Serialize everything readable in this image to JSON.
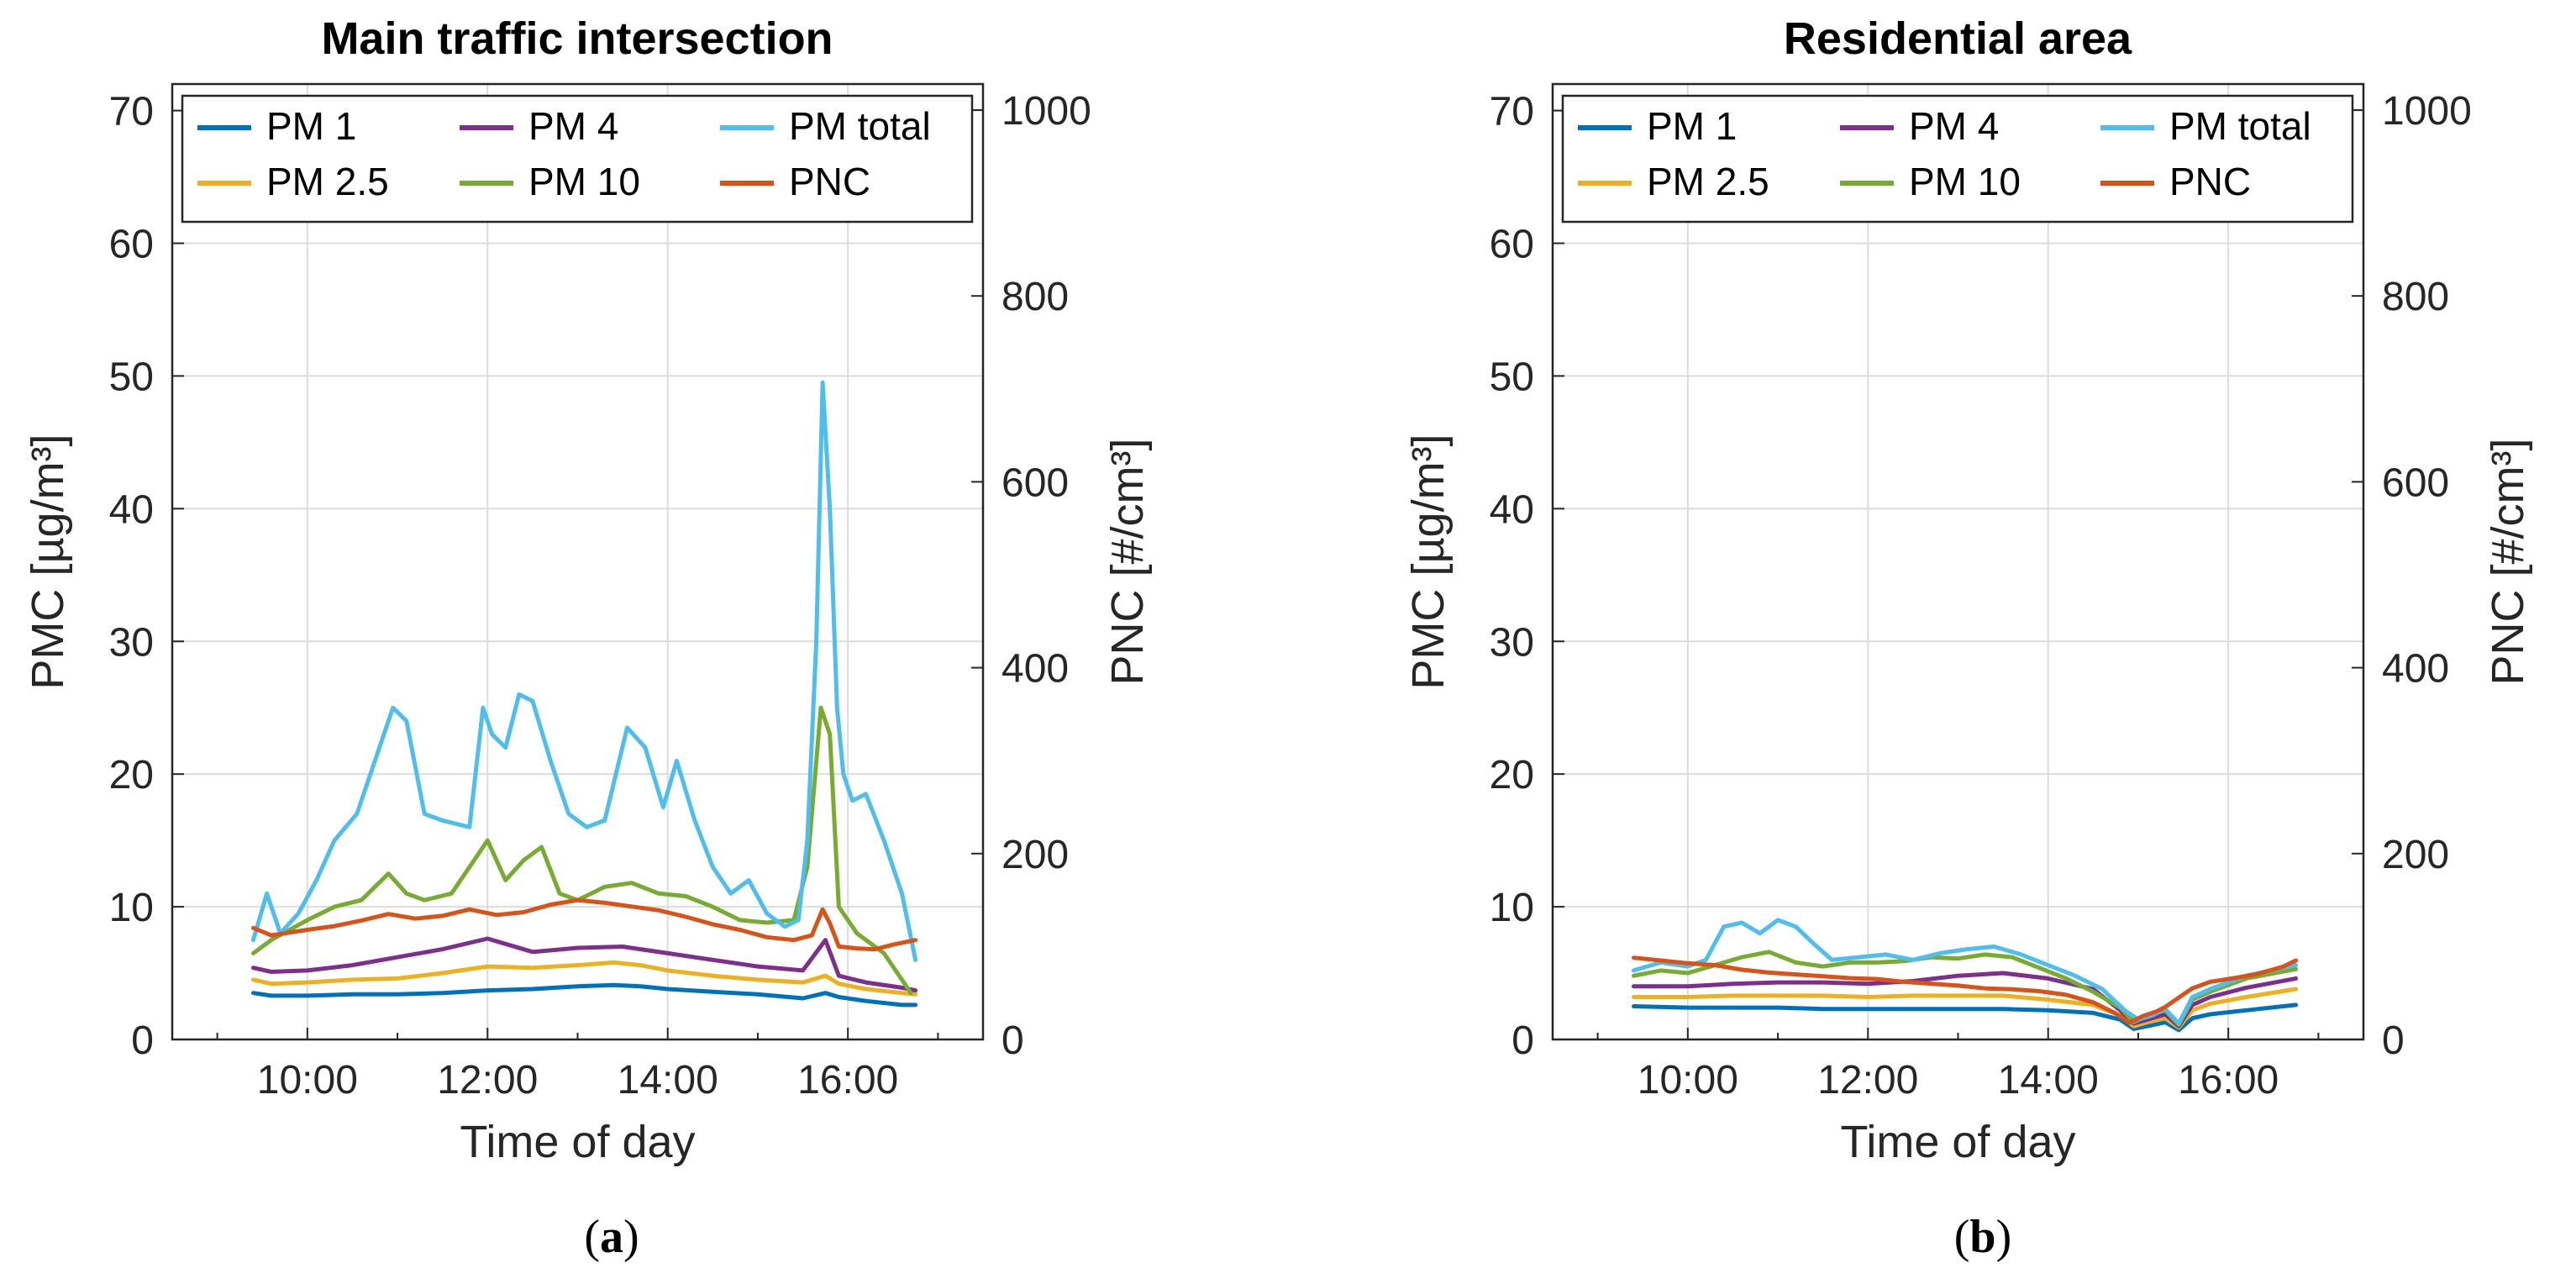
{
  "figure": {
    "captions": [
      {
        "open": "(",
        "letter": "a",
        "close": ")"
      },
      {
        "open": "(",
        "letter": "b",
        "close": ")"
      }
    ]
  },
  "chart_data": [
    {
      "type": "line",
      "title": "Main traffic intersection",
      "xlabel": "Time of day",
      "ylabel_left": "PMC [µg/m³]",
      "ylabel_right": "PNC [#/cm³]",
      "xlim": [
        8.5,
        17.5
      ],
      "ylim_left": [
        0,
        72
      ],
      "ylim_right": [
        0,
        1028
      ],
      "x_ticks": [
        10,
        12,
        14,
        16
      ],
      "x_tick_labels": [
        "10:00",
        "12:00",
        "14:00",
        "16:00"
      ],
      "y_ticks_left": [
        0,
        10,
        20,
        30,
        40,
        50,
        60,
        70
      ],
      "y_tick_labels_left": [
        "0",
        "10",
        "20",
        "30",
        "40",
        "50",
        "60",
        "70"
      ],
      "y_ticks_right": [
        0,
        200,
        400,
        600,
        800,
        1000
      ],
      "y_tick_labels_right": [
        "0",
        "200",
        "400",
        "600",
        "800",
        "1000"
      ],
      "grid": true,
      "legend_position": "top",
      "series": [
        {
          "name": "PM 1",
          "axis": "left",
          "color": "#0072BD",
          "x": [
            9.4,
            9.6,
            10.0,
            10.5,
            11.0,
            11.5,
            12.0,
            12.5,
            13.0,
            13.4,
            13.7,
            14.0,
            14.5,
            15.0,
            15.5,
            15.75,
            15.9,
            16.2,
            16.6,
            16.75
          ],
          "y": [
            3.5,
            3.3,
            3.3,
            3.4,
            3.4,
            3.5,
            3.7,
            3.8,
            4.0,
            4.1,
            4.0,
            3.8,
            3.6,
            3.4,
            3.1,
            3.5,
            3.2,
            2.9,
            2.6,
            2.6
          ]
        },
        {
          "name": "PM 2.5",
          "axis": "left",
          "color": "#EDB120",
          "x": [
            9.4,
            9.6,
            10.0,
            10.5,
            11.0,
            11.5,
            12.0,
            12.5,
            13.0,
            13.4,
            13.7,
            14.0,
            14.5,
            15.0,
            15.5,
            15.75,
            15.9,
            16.2,
            16.6,
            16.75
          ],
          "y": [
            4.5,
            4.2,
            4.3,
            4.5,
            4.6,
            5.0,
            5.5,
            5.4,
            5.6,
            5.8,
            5.6,
            5.2,
            4.8,
            4.5,
            4.3,
            4.8,
            4.2,
            3.8,
            3.5,
            3.4
          ]
        },
        {
          "name": "PM 4",
          "axis": "left",
          "color": "#7E2F8E",
          "x": [
            9.4,
            9.6,
            10.0,
            10.5,
            11.0,
            11.5,
            12.0,
            12.2,
            12.5,
            13.0,
            13.5,
            14.0,
            14.5,
            15.0,
            15.5,
            15.75,
            15.9,
            16.2,
            16.6,
            16.75
          ],
          "y": [
            5.4,
            5.1,
            5.2,
            5.6,
            6.2,
            6.8,
            7.6,
            7.2,
            6.6,
            6.9,
            7.0,
            6.5,
            6.0,
            5.5,
            5.2,
            7.5,
            4.8,
            4.3,
            3.9,
            3.7
          ]
        },
        {
          "name": "PM 10",
          "axis": "left",
          "color": "#77AC30",
          "x": [
            9.4,
            9.6,
            10.0,
            10.3,
            10.6,
            10.9,
            11.1,
            11.3,
            11.6,
            11.9,
            12.0,
            12.2,
            12.4,
            12.6,
            12.8,
            13.0,
            13.3,
            13.6,
            13.9,
            14.2,
            14.5,
            14.8,
            15.1,
            15.4,
            15.55,
            15.7,
            15.8,
            15.9,
            16.1,
            16.4,
            16.7
          ],
          "y": [
            6.5,
            7.5,
            9.0,
            10.0,
            10.5,
            12.5,
            11.0,
            10.5,
            11.0,
            14.0,
            15.0,
            12.0,
            13.5,
            14.5,
            11.0,
            10.5,
            11.5,
            11.8,
            11.0,
            10.8,
            10.0,
            9.0,
            8.8,
            9.0,
            13.0,
            25.0,
            23.0,
            10.0,
            8.0,
            6.5,
            3.5
          ]
        },
        {
          "name": "PM total",
          "axis": "left",
          "color": "#4DBEEE",
          "x": [
            9.4,
            9.55,
            9.7,
            9.9,
            10.1,
            10.3,
            10.55,
            10.8,
            10.95,
            11.1,
            11.3,
            11.5,
            11.8,
            11.95,
            12.05,
            12.2,
            12.35,
            12.5,
            12.7,
            12.9,
            13.1,
            13.3,
            13.55,
            13.75,
            13.95,
            14.1,
            14.3,
            14.5,
            14.7,
            14.9,
            15.1,
            15.3,
            15.45,
            15.55,
            15.65,
            15.72,
            15.8,
            15.88,
            15.95,
            16.05,
            16.2,
            16.4,
            16.6,
            16.75
          ],
          "y": [
            7.5,
            11.0,
            8.0,
            9.5,
            12.0,
            15.0,
            17.0,
            22.0,
            25.0,
            24.0,
            17.0,
            16.5,
            16.0,
            25.0,
            23.0,
            22.0,
            26.0,
            25.5,
            21.0,
            17.0,
            16.0,
            16.5,
            23.5,
            22.0,
            17.5,
            21.0,
            16.5,
            13.0,
            11.0,
            12.0,
            9.5,
            8.5,
            9.0,
            15.0,
            30.0,
            49.5,
            40.0,
            25.0,
            20.0,
            18.0,
            18.5,
            15.0,
            11.0,
            6.0
          ]
        },
        {
          "name": "PNC",
          "axis": "right",
          "color": "#D95319",
          "x": [
            9.4,
            9.6,
            9.8,
            10.0,
            10.3,
            10.6,
            10.9,
            11.2,
            11.5,
            11.8,
            12.1,
            12.4,
            12.7,
            13.0,
            13.3,
            13.6,
            13.9,
            14.2,
            14.5,
            14.8,
            15.1,
            15.4,
            15.6,
            15.72,
            15.8,
            15.9,
            16.1,
            16.3,
            16.5,
            16.75
          ],
          "y": [
            120,
            112,
            115,
            118,
            122,
            128,
            135,
            130,
            133,
            140,
            134,
            137,
            145,
            150,
            147,
            143,
            139,
            132,
            124,
            118,
            110,
            107,
            112,
            140,
            125,
            100,
            98,
            97,
            102,
            107
          ]
        }
      ]
    },
    {
      "type": "line",
      "title": "Residential area",
      "xlabel": "Time of day",
      "ylabel_left": "PMC [µg/m³]",
      "ylabel_right": "PNC [#/cm³]",
      "xlim": [
        8.5,
        17.5
      ],
      "ylim_left": [
        0,
        72
      ],
      "ylim_right": [
        0,
        1028
      ],
      "x_ticks": [
        10,
        12,
        14,
        16
      ],
      "x_tick_labels": [
        "10:00",
        "12:00",
        "14:00",
        "16:00"
      ],
      "y_ticks_left": [
        0,
        10,
        20,
        30,
        40,
        50,
        60,
        70
      ],
      "y_tick_labels_left": [
        "0",
        "10",
        "20",
        "30",
        "40",
        "50",
        "60",
        "70"
      ],
      "y_ticks_right": [
        0,
        200,
        400,
        600,
        800,
        1000
      ],
      "y_tick_labels_right": [
        "0",
        "200",
        "400",
        "600",
        "800",
        "1000"
      ],
      "grid": true,
      "legend_position": "top",
      "series": [
        {
          "name": "PM 1",
          "axis": "left",
          "color": "#0072BD",
          "x": [
            9.4,
            10.0,
            10.5,
            11.0,
            11.5,
            12.0,
            12.5,
            13.0,
            13.5,
            14.0,
            14.5,
            14.8,
            14.95,
            15.1,
            15.3,
            15.45,
            15.6,
            15.8,
            16.2,
            16.75
          ],
          "y": [
            2.5,
            2.4,
            2.4,
            2.4,
            2.3,
            2.3,
            2.3,
            2.3,
            2.3,
            2.2,
            2.0,
            1.5,
            0.8,
            1.0,
            1.3,
            0.7,
            1.6,
            1.9,
            2.2,
            2.6
          ]
        },
        {
          "name": "PM 2.5",
          "axis": "left",
          "color": "#EDB120",
          "x": [
            9.4,
            10.0,
            10.5,
            11.0,
            11.5,
            12.0,
            12.5,
            13.0,
            13.5,
            14.0,
            14.5,
            14.8,
            14.95,
            15.1,
            15.3,
            15.45,
            15.6,
            15.8,
            16.2,
            16.75
          ],
          "y": [
            3.2,
            3.2,
            3.3,
            3.3,
            3.3,
            3.2,
            3.3,
            3.3,
            3.3,
            3.0,
            2.6,
            1.8,
            1.0,
            1.3,
            1.6,
            0.9,
            2.2,
            2.7,
            3.2,
            3.8
          ]
        },
        {
          "name": "PM 4",
          "axis": "left",
          "color": "#7E2F8E",
          "x": [
            9.4,
            10.0,
            10.5,
            11.0,
            11.5,
            12.0,
            12.5,
            13.0,
            13.5,
            14.0,
            14.5,
            14.8,
            14.95,
            15.1,
            15.3,
            15.45,
            15.6,
            15.8,
            16.2,
            16.75
          ],
          "y": [
            4.0,
            4.0,
            4.2,
            4.3,
            4.3,
            4.2,
            4.4,
            4.8,
            5.0,
            4.6,
            3.8,
            2.2,
            1.2,
            1.5,
            1.9,
            1.0,
            2.6,
            3.2,
            3.9,
            4.6
          ]
        },
        {
          "name": "PM 10",
          "axis": "left",
          "color": "#77AC30",
          "x": [
            9.4,
            9.7,
            10.0,
            10.3,
            10.6,
            10.9,
            11.2,
            11.5,
            11.8,
            12.1,
            12.4,
            12.7,
            13.0,
            13.3,
            13.6,
            13.9,
            14.2,
            14.5,
            14.8,
            14.95,
            15.1,
            15.3,
            15.45,
            15.6,
            15.8,
            16.2,
            16.75
          ],
          "y": [
            4.8,
            5.2,
            5.0,
            5.6,
            6.2,
            6.6,
            5.8,
            5.5,
            5.8,
            5.8,
            5.9,
            6.2,
            6.1,
            6.4,
            6.2,
            5.4,
            4.6,
            3.6,
            2.4,
            1.3,
            1.8,
            2.2,
            1.1,
            3.0,
            3.6,
            4.6,
            5.3
          ]
        },
        {
          "name": "PM total",
          "axis": "left",
          "color": "#4DBEEE",
          "x": [
            9.4,
            9.7,
            10.0,
            10.2,
            10.4,
            10.6,
            10.8,
            11.0,
            11.2,
            11.4,
            11.6,
            11.9,
            12.2,
            12.5,
            12.8,
            13.1,
            13.4,
            13.7,
            14.0,
            14.3,
            14.6,
            14.85,
            15.0,
            15.15,
            15.3,
            15.45,
            15.6,
            15.8,
            16.2,
            16.75
          ],
          "y": [
            5.2,
            5.8,
            5.5,
            6.0,
            8.5,
            8.8,
            8.0,
            9.0,
            8.5,
            7.2,
            6.0,
            6.2,
            6.4,
            6.0,
            6.5,
            6.8,
            7.0,
            6.4,
            5.6,
            4.8,
            3.8,
            2.2,
            1.5,
            1.8,
            2.3,
            1.2,
            3.2,
            3.8,
            4.8,
            5.6
          ]
        },
        {
          "name": "PNC",
          "axis": "right",
          "color": "#D95319",
          "x": [
            9.4,
            9.7,
            10.0,
            10.3,
            10.6,
            10.9,
            11.2,
            11.5,
            11.8,
            12.1,
            12.4,
            12.7,
            13.0,
            13.3,
            13.6,
            13.9,
            14.2,
            14.5,
            14.75,
            14.9,
            15.05,
            15.2,
            15.3,
            15.45,
            15.6,
            15.8,
            16.0,
            16.3,
            16.6,
            16.75
          ],
          "y": [
            88,
            85,
            82,
            80,
            75,
            72,
            70,
            68,
            66,
            65,
            62,
            60,
            58,
            55,
            54,
            52,
            48,
            40,
            28,
            18,
            25,
            30,
            35,
            45,
            55,
            62,
            65,
            70,
            78,
            85
          ]
        }
      ]
    }
  ]
}
